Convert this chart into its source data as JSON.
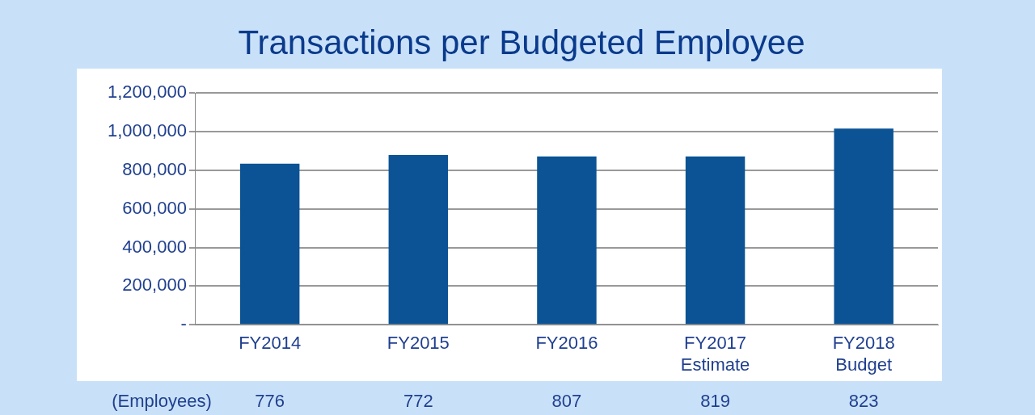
{
  "chart_data": {
    "type": "bar",
    "title": "Transactions per Budgeted Employee",
    "categories": [
      "FY2014",
      "FY2015",
      "FY2016",
      "FY2017 Estimate",
      "FY2018 Budget"
    ],
    "values": [
      835000,
      879000,
      872000,
      872000,
      1017000
    ],
    "color": "#0b5394",
    "ylim": [
      0,
      1200000
    ],
    "yticks": [
      {
        "value": 0,
        "label": "-"
      },
      {
        "value": 200000,
        "label": "200,000"
      },
      {
        "value": 400000,
        "label": "400,000"
      },
      {
        "value": 600000,
        "label": "600,000"
      },
      {
        "value": 800000,
        "label": "800,000"
      },
      {
        "value": 1000000,
        "label": "1,000,000"
      },
      {
        "value": 1200000,
        "label": "1,200,000"
      }
    ],
    "grid": "y",
    "legend": false,
    "annotations": [
      "(Employees)",
      "776",
      "772",
      "807",
      "819",
      "823"
    ]
  }
}
